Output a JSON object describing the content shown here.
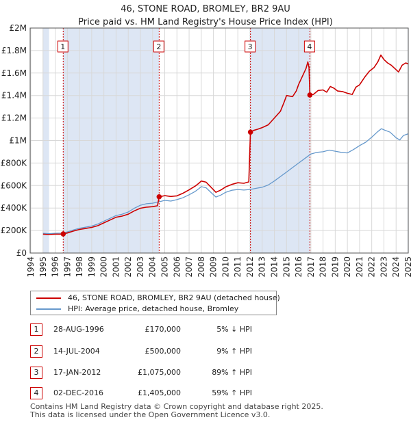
{
  "colors": {
    "property": "#cc0000",
    "hpi": "#6699cc",
    "shade": "#dde6f4",
    "marker_line": "#cc0000",
    "grid": "#d8d8d8"
  },
  "chart_data": {
    "type": "line",
    "title": "46, STONE ROAD, BROMLEY, BR2 9AU",
    "subtitle": "Price paid vs. HM Land Registry's House Price Index (HPI)",
    "xlabel": "",
    "ylabel": "",
    "xlim": [
      1994,
      2025
    ],
    "ylim": [
      0,
      2000000
    ],
    "y_ticks": [
      {
        "value": 0,
        "label": "£0"
      },
      {
        "value": 200000,
        "label": "£200K"
      },
      {
        "value": 400000,
        "label": "£400K"
      },
      {
        "value": 600000,
        "label": "£600K"
      },
      {
        "value": 800000,
        "label": "£800K"
      },
      {
        "value": 1000000,
        "label": "£1M"
      },
      {
        "value": 1200000,
        "label": "£1.2M"
      },
      {
        "value": 1400000,
        "label": "£1.4M"
      },
      {
        "value": 1600000,
        "label": "£1.6M"
      },
      {
        "value": 1800000,
        "label": "£1.8M"
      },
      {
        "value": 2000000,
        "label": "£2M"
      }
    ],
    "x_ticks": [
      "1994",
      "1995",
      "1996",
      "1997",
      "1998",
      "1999",
      "2000",
      "2001",
      "2002",
      "2003",
      "2004",
      "2005",
      "2006",
      "2007",
      "2008",
      "2009",
      "2010",
      "2011",
      "2012",
      "2013",
      "2014",
      "2015",
      "2016",
      "2017",
      "2018",
      "2019",
      "2020",
      "2021",
      "2022",
      "2023",
      "2024",
      "2025"
    ],
    "series": [
      {
        "name": "46, STONE ROAD, BROMLEY, BR2 9AU (detached house)",
        "points": [
          [
            1995.0,
            168000
          ],
          [
            1995.5,
            164000
          ],
          [
            1996.0,
            168000
          ],
          [
            1996.5,
            168000
          ],
          [
            1996.66,
            170000
          ],
          [
            1997.0,
            178000
          ],
          [
            1997.5,
            195000
          ],
          [
            1998.0,
            210000
          ],
          [
            1998.5,
            218000
          ],
          [
            1999.0,
            228000
          ],
          [
            1999.5,
            243000
          ],
          [
            2000.0,
            268000
          ],
          [
            2000.5,
            293000
          ],
          [
            2001.0,
            318000
          ],
          [
            2001.5,
            328000
          ],
          [
            2002.0,
            345000
          ],
          [
            2002.5,
            375000
          ],
          [
            2003.0,
            398000
          ],
          [
            2003.5,
            408000
          ],
          [
            2004.0,
            412000
          ],
          [
            2004.4,
            420000
          ],
          [
            2004.54,
            500000
          ],
          [
            2005.0,
            510000
          ],
          [
            2005.5,
            503000
          ],
          [
            2006.0,
            508000
          ],
          [
            2006.5,
            532000
          ],
          [
            2007.0,
            562000
          ],
          [
            2007.5,
            595000
          ],
          [
            2007.8,
            620000
          ],
          [
            2008.0,
            640000
          ],
          [
            2008.4,
            630000
          ],
          [
            2008.8,
            585000
          ],
          [
            2009.2,
            540000
          ],
          [
            2009.6,
            560000
          ],
          [
            2010.0,
            588000
          ],
          [
            2010.5,
            610000
          ],
          [
            2011.0,
            625000
          ],
          [
            2011.5,
            620000
          ],
          [
            2011.9,
            632000
          ],
          [
            2012.04,
            1075000
          ],
          [
            2012.3,
            1090000
          ],
          [
            2012.6,
            1100000
          ],
          [
            2013.0,
            1115000
          ],
          [
            2013.5,
            1140000
          ],
          [
            2014.0,
            1200000
          ],
          [
            2014.5,
            1260000
          ],
          [
            2014.8,
            1340000
          ],
          [
            2015.0,
            1400000
          ],
          [
            2015.5,
            1390000
          ],
          [
            2015.8,
            1440000
          ],
          [
            2016.0,
            1500000
          ],
          [
            2016.3,
            1570000
          ],
          [
            2016.6,
            1640000
          ],
          [
            2016.75,
            1700000
          ],
          [
            2016.85,
            1650000
          ],
          [
            2016.92,
            1405000
          ],
          [
            2017.2,
            1410000
          ],
          [
            2017.6,
            1445000
          ],
          [
            2018.0,
            1450000
          ],
          [
            2018.3,
            1430000
          ],
          [
            2018.6,
            1480000
          ],
          [
            2018.9,
            1465000
          ],
          [
            2019.2,
            1440000
          ],
          [
            2019.6,
            1435000
          ],
          [
            2020.0,
            1420000
          ],
          [
            2020.4,
            1410000
          ],
          [
            2020.7,
            1475000
          ],
          [
            2021.0,
            1495000
          ],
          [
            2021.4,
            1560000
          ],
          [
            2021.8,
            1615000
          ],
          [
            2022.2,
            1650000
          ],
          [
            2022.5,
            1700000
          ],
          [
            2022.75,
            1760000
          ],
          [
            2023.0,
            1720000
          ],
          [
            2023.3,
            1690000
          ],
          [
            2023.6,
            1670000
          ],
          [
            2023.9,
            1640000
          ],
          [
            2024.2,
            1610000
          ],
          [
            2024.5,
            1670000
          ],
          [
            2024.8,
            1690000
          ],
          [
            2025.0,
            1680000
          ]
        ]
      },
      {
        "name": "HPI: Average price, detached house, Bromley",
        "points": [
          [
            1995.0,
            175000
          ],
          [
            1995.5,
            172000
          ],
          [
            1996.0,
            175000
          ],
          [
            1996.5,
            177000
          ],
          [
            1997.0,
            188000
          ],
          [
            1997.5,
            205000
          ],
          [
            1998.0,
            220000
          ],
          [
            1998.5,
            230000
          ],
          [
            1999.0,
            240000
          ],
          [
            1999.5,
            258000
          ],
          [
            2000.0,
            283000
          ],
          [
            2000.5,
            308000
          ],
          [
            2001.0,
            333000
          ],
          [
            2001.5,
            345000
          ],
          [
            2002.0,
            365000
          ],
          [
            2002.5,
            398000
          ],
          [
            2003.0,
            425000
          ],
          [
            2003.5,
            438000
          ],
          [
            2004.0,
            443000
          ],
          [
            2004.5,
            455000
          ],
          [
            2005.0,
            468000
          ],
          [
            2005.5,
            462000
          ],
          [
            2006.0,
            475000
          ],
          [
            2006.5,
            492000
          ],
          [
            2007.0,
            518000
          ],
          [
            2007.5,
            548000
          ],
          [
            2007.8,
            572000
          ],
          [
            2008.0,
            590000
          ],
          [
            2008.4,
            580000
          ],
          [
            2008.8,
            538000
          ],
          [
            2009.2,
            498000
          ],
          [
            2009.6,
            515000
          ],
          [
            2010.0,
            540000
          ],
          [
            2010.5,
            558000
          ],
          [
            2011.0,
            565000
          ],
          [
            2011.5,
            560000
          ],
          [
            2012.0,
            565000
          ],
          [
            2012.5,
            575000
          ],
          [
            2013.0,
            585000
          ],
          [
            2013.5,
            605000
          ],
          [
            2014.0,
            640000
          ],
          [
            2014.5,
            680000
          ],
          [
            2015.0,
            720000
          ],
          [
            2015.5,
            760000
          ],
          [
            2016.0,
            800000
          ],
          [
            2016.5,
            840000
          ],
          [
            2017.0,
            880000
          ],
          [
            2017.5,
            895000
          ],
          [
            2018.0,
            900000
          ],
          [
            2018.5,
            915000
          ],
          [
            2019.0,
            905000
          ],
          [
            2019.5,
            895000
          ],
          [
            2020.0,
            890000
          ],
          [
            2020.5,
            920000
          ],
          [
            2021.0,
            955000
          ],
          [
            2021.5,
            985000
          ],
          [
            2022.0,
            1030000
          ],
          [
            2022.5,
            1080000
          ],
          [
            2022.8,
            1105000
          ],
          [
            2023.0,
            1095000
          ],
          [
            2023.5,
            1075000
          ],
          [
            2024.0,
            1025000
          ],
          [
            2024.3,
            1005000
          ],
          [
            2024.6,
            1045000
          ],
          [
            2025.0,
            1060000
          ]
        ]
      }
    ],
    "sale_markers": [
      {
        "label": "1",
        "year": 1996.66,
        "value": 170000
      },
      {
        "label": "2",
        "year": 2004.54,
        "value": 500000
      },
      {
        "label": "3",
        "year": 2012.04,
        "value": 1075000
      },
      {
        "label": "4",
        "year": 2016.92,
        "value": 1405000
      }
    ],
    "shaded_ranges": [
      [
        1995.0,
        1995.5
      ],
      [
        1996.66,
        2004.54
      ],
      [
        2012.04,
        2016.92
      ],
      [
        2024.95,
        2025.0
      ]
    ]
  },
  "legend": {
    "property_label": "46, STONE ROAD, BROMLEY, BR2 9AU (detached house)",
    "hpi_label": "HPI: Average price, detached house, Bromley"
  },
  "sales": [
    {
      "num": "1",
      "date": "28-AUG-1996",
      "price": "£170,000",
      "hpi": "5% ↓ HPI"
    },
    {
      "num": "2",
      "date": "14-JUL-2004",
      "price": "£500,000",
      "hpi": "9% ↑ HPI"
    },
    {
      "num": "3",
      "date": "17-JAN-2012",
      "price": "£1,075,000",
      "hpi": "89% ↑ HPI"
    },
    {
      "num": "4",
      "date": "02-DEC-2016",
      "price": "£1,405,000",
      "hpi": "59% ↑ HPI"
    }
  ],
  "footer": {
    "line1": "Contains HM Land Registry data © Crown copyright and database right 2025.",
    "line2": "This data is licensed under the Open Government Licence v3.0."
  }
}
